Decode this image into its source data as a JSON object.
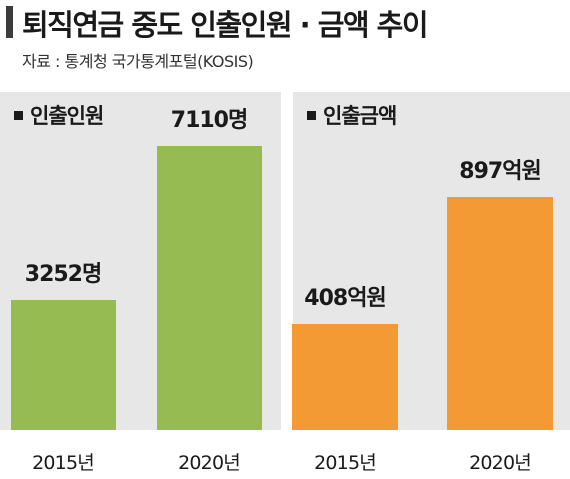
{
  "title": "퇴직연금 중도 인출인원 · 금액 추이",
  "source": "자료 : 통계청 국가통계포털(KOSIS)",
  "chart_data": [
    {
      "type": "bar",
      "title": "인출인원",
      "categories": [
        "2015년",
        "2020년"
      ],
      "values": [
        3252,
        7110
      ],
      "value_labels": [
        "3252명",
        "7110명"
      ],
      "color": "#97bb53"
    },
    {
      "type": "bar",
      "title": "인출금액",
      "categories": [
        "2015년",
        "2020년"
      ],
      "values": [
        408,
        897
      ],
      "value_labels": [
        "408억원",
        "897억원"
      ],
      "color": "#f39a34"
    }
  ]
}
